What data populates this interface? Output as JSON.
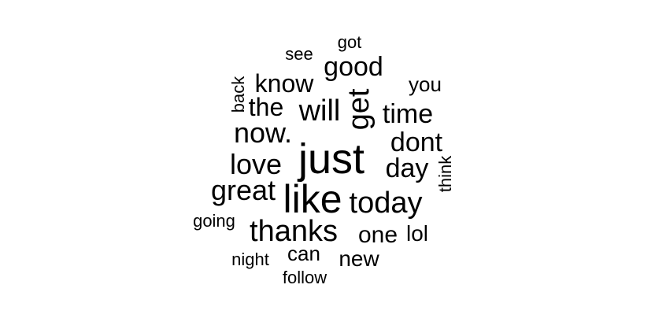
{
  "word_cloud": {
    "text_color": "#000000",
    "background_color": "#ffffff",
    "words": [
      {
        "text": "just"
      },
      {
        "text": "like"
      },
      {
        "text": "get"
      },
      {
        "text": "thanks"
      },
      {
        "text": "today"
      },
      {
        "text": "will"
      },
      {
        "text": "now."
      },
      {
        "text": "great"
      },
      {
        "text": "love"
      },
      {
        "text": "dont"
      },
      {
        "text": "good"
      },
      {
        "text": "time"
      },
      {
        "text": "day"
      },
      {
        "text": "know"
      },
      {
        "text": "the"
      },
      {
        "text": "one"
      },
      {
        "text": "new"
      },
      {
        "text": "lol"
      },
      {
        "text": "can"
      },
      {
        "text": "you"
      },
      {
        "text": "back"
      },
      {
        "text": "think"
      },
      {
        "text": "going"
      },
      {
        "text": "night"
      },
      {
        "text": "follow"
      },
      {
        "text": "see"
      },
      {
        "text": "got"
      }
    ]
  }
}
